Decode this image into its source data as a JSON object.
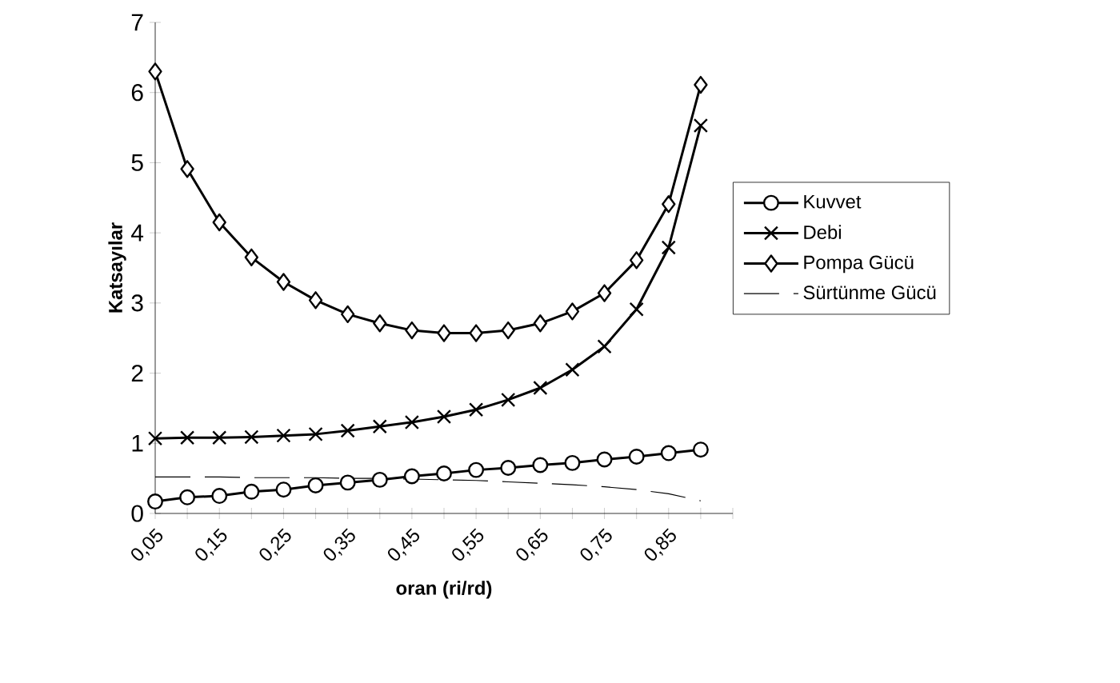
{
  "chart_data": {
    "type": "line",
    "xlabel": "oran (ri/rd)",
    "ylabel": "Katsayılar",
    "categories": [
      "0,05",
      null,
      "0,15",
      null,
      "0,25",
      null,
      "0,35",
      null,
      "0,45",
      null,
      "0,55",
      null,
      "0,65",
      null,
      "0,75",
      null,
      "0,85",
      null
    ],
    "series": [
      {
        "name": "Kuvvet",
        "color": "#000000",
        "marker": "circle",
        "line_style": "solid",
        "values": [
          0.17,
          0.23,
          0.25,
          0.31,
          0.34,
          0.4,
          0.44,
          0.48,
          0.53,
          0.57,
          0.62,
          0.65,
          0.69,
          0.72,
          0.77,
          0.81,
          0.86,
          0.91
        ]
      },
      {
        "name": "Debi",
        "color": "#000000",
        "marker": "cross",
        "line_style": "solid",
        "values": [
          1.07,
          1.08,
          1.08,
          1.09,
          1.11,
          1.13,
          1.18,
          1.24,
          1.3,
          1.38,
          1.48,
          1.62,
          1.79,
          2.05,
          2.38,
          2.91,
          3.79,
          5.53
        ]
      },
      {
        "name": "Pompa Gücü",
        "color": "#000000",
        "marker": "diamond",
        "line_style": "solid",
        "values": [
          6.3,
          4.91,
          4.15,
          3.65,
          3.3,
          3.04,
          2.84,
          2.71,
          2.61,
          2.57,
          2.57,
          2.61,
          2.71,
          2.88,
          3.14,
          3.61,
          4.41,
          6.11
        ]
      },
      {
        "name": "Sürtünme Gücü",
        "color": "#000000",
        "marker": "none",
        "line_style": "dashed",
        "values": [
          0.52,
          0.52,
          0.52,
          0.51,
          0.51,
          0.51,
          0.5,
          0.5,
          0.49,
          0.48,
          0.47,
          0.45,
          0.43,
          0.41,
          0.38,
          0.34,
          0.28,
          0.18
        ]
      }
    ],
    "ylim": [
      0,
      7
    ],
    "yticks": [
      0,
      1,
      2,
      3,
      4,
      5,
      6,
      7
    ],
    "grid": false,
    "legend": "right"
  }
}
